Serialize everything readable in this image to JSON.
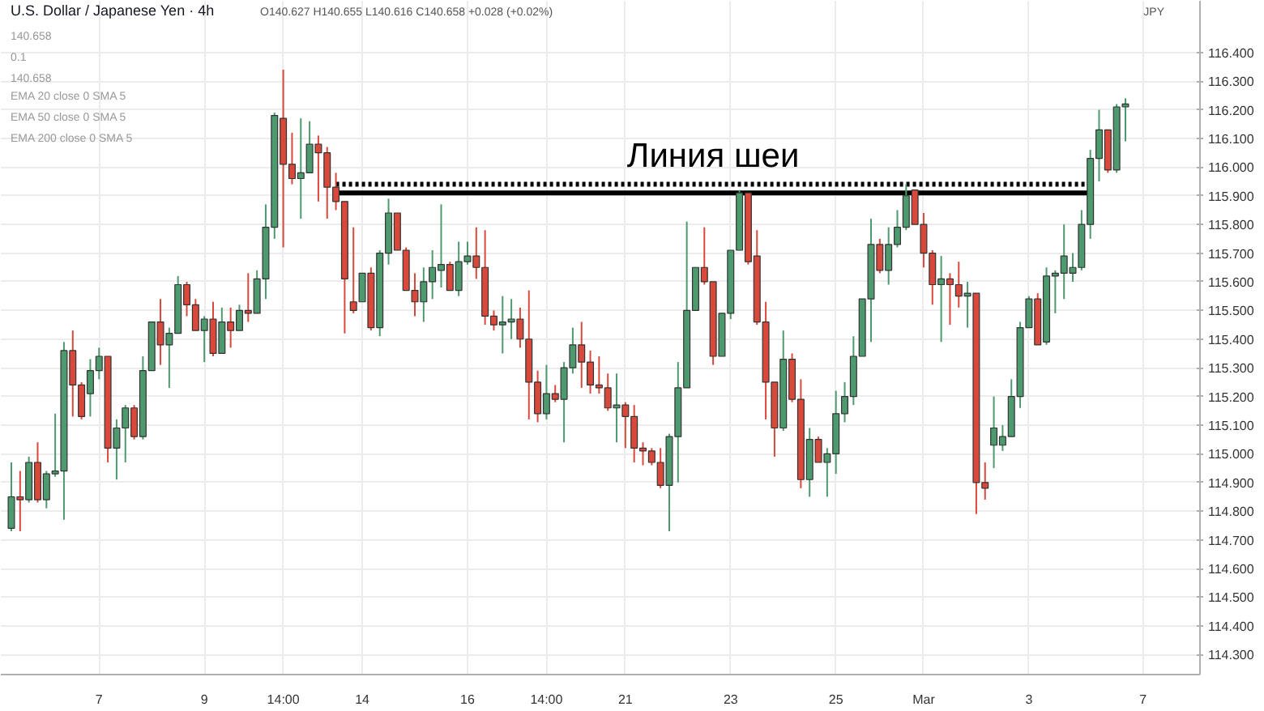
{
  "chart_data": {
    "type": "candlestick",
    "title": "U.S. Dollar / Japanese Yen · 4h",
    "ylabel": "JPY",
    "annotations": [
      "O140.627 H140.655 L140.616 C140.658 +0.028 (+0.02%)",
      "140.658",
      "0.1",
      "140.658",
      "EMA 20 close 0 SMA 5",
      "EMA 50 close 0 SMA 5",
      "EMA 200 close 0 SMA 5",
      "Линия шеи"
    ],
    "categories": [
      null,
      null,
      null,
      null,
      null,
      null,
      null,
      null,
      null,
      null,
      "7",
      null,
      null,
      null,
      null,
      null,
      null,
      null,
      null,
      null,
      null,
      null,
      "9",
      null,
      null,
      null,
      null,
      null,
      null,
      null,
      null,
      "14:00",
      null,
      null,
      null,
      null,
      null,
      null,
      null,
      null,
      "14",
      null,
      null,
      null,
      null,
      null,
      null,
      null,
      null,
      null,
      null,
      null,
      "16",
      null,
      null,
      null,
      null,
      null,
      null,
      null,
      null,
      "14:00",
      null,
      null,
      null,
      null,
      null,
      null,
      null,
      null,
      "21",
      null,
      null,
      null,
      null,
      null,
      null,
      null,
      null,
      null,
      null,
      null,
      "23",
      null,
      null,
      null,
      null,
      null,
      null,
      null,
      null,
      null,
      null,
      null,
      "25",
      null,
      null,
      null,
      null,
      null,
      null,
      null,
      null,
      null,
      "Mar",
      null,
      null,
      null,
      null,
      null,
      null,
      null,
      null,
      null,
      null,
      null,
      "3",
      null,
      null,
      null,
      null,
      null,
      null,
      null,
      null,
      null,
      null,
      null,
      null,
      "7"
    ],
    "ohlc": [
      [
        114.74,
        114.97,
        114.73,
        114.85
      ],
      [
        114.85,
        114.94,
        114.73,
        114.84
      ],
      [
        114.84,
        114.99,
        114.83,
        114.97
      ],
      [
        114.97,
        115.04,
        114.83,
        114.84
      ],
      [
        114.84,
        114.94,
        114.81,
        114.93
      ],
      [
        114.93,
        115.14,
        114.92,
        114.94
      ],
      [
        114.94,
        115.39,
        114.77,
        115.36
      ],
      [
        115.36,
        115.43,
        115.13,
        115.24
      ],
      [
        115.24,
        115.25,
        115.12,
        115.13
      ],
      [
        115.21,
        115.33,
        115.13,
        115.29
      ],
      [
        115.29,
        115.37,
        115.26,
        115.34
      ],
      [
        115.34,
        115.34,
        114.97,
        115.02
      ],
      [
        115.02,
        115.12,
        114.91,
        115.09
      ],
      [
        115.09,
        115.17,
        114.97,
        115.16
      ],
      [
        115.16,
        115.17,
        115.05,
        115.06
      ],
      [
        115.06,
        115.34,
        115.05,
        115.29
      ],
      [
        115.29,
        115.46,
        115.29,
        115.46
      ],
      [
        115.46,
        115.54,
        115.31,
        115.38
      ],
      [
        115.38,
        115.44,
        115.23,
        115.42
      ],
      [
        115.42,
        115.62,
        115.42,
        115.59
      ],
      [
        115.59,
        115.6,
        115.48,
        115.52
      ],
      [
        115.52,
        115.54,
        115.43,
        115.43
      ],
      [
        115.43,
        115.48,
        115.32,
        115.47
      ],
      [
        115.47,
        115.53,
        115.34,
        115.35
      ],
      [
        115.35,
        115.51,
        115.35,
        115.46
      ],
      [
        115.46,
        115.51,
        115.37,
        115.43
      ],
      [
        115.43,
        115.52,
        115.43,
        115.5
      ],
      [
        115.5,
        115.63,
        115.46,
        115.49
      ],
      [
        115.49,
        115.64,
        115.49,
        115.61
      ],
      [
        115.61,
        115.87,
        115.54,
        115.79
      ],
      [
        115.79,
        116.19,
        115.75,
        116.18
      ],
      [
        116.17,
        116.34,
        115.72,
        116.01
      ],
      [
        116.01,
        116.12,
        115.94,
        115.96
      ],
      [
        115.96,
        116.17,
        115.82,
        115.98
      ],
      [
        115.98,
        116.16,
        115.98,
        116.08
      ],
      [
        116.08,
        116.11,
        115.88,
        116.05
      ],
      [
        116.05,
        116.07,
        115.82,
        115.93
      ],
      [
        115.93,
        115.98,
        115.85,
        115.88
      ],
      [
        115.88,
        115.88,
        115.42,
        115.61
      ],
      [
        115.53,
        115.79,
        115.49,
        115.5
      ],
      [
        115.53,
        115.63,
        115.53,
        115.63
      ],
      [
        115.63,
        115.65,
        115.43,
        115.44
      ],
      [
        115.44,
        115.71,
        115.41,
        115.7
      ],
      [
        115.7,
        115.89,
        115.66,
        115.84
      ],
      [
        115.84,
        115.84,
        115.71,
        115.71
      ],
      [
        115.71,
        115.72,
        115.57,
        115.57
      ],
      [
        115.57,
        115.63,
        115.48,
        115.53
      ],
      [
        115.53,
        115.65,
        115.46,
        115.6
      ],
      [
        115.6,
        115.71,
        115.54,
        115.65
      ],
      [
        115.64,
        115.87,
        115.58,
        115.66
      ],
      [
        115.66,
        115.67,
        115.57,
        115.57
      ],
      [
        115.57,
        115.74,
        115.55,
        115.67
      ],
      [
        115.67,
        115.74,
        115.66,
        115.69
      ],
      [
        115.69,
        115.79,
        115.61,
        115.65
      ],
      [
        115.65,
        115.78,
        115.45,
        115.48
      ],
      [
        115.48,
        115.5,
        115.43,
        115.45
      ],
      [
        115.45,
        115.55,
        115.35,
        115.46
      ],
      [
        115.46,
        115.54,
        115.4,
        115.47
      ],
      [
        115.47,
        115.51,
        115.37,
        115.4
      ],
      [
        115.4,
        115.57,
        115.12,
        115.25
      ],
      [
        115.25,
        115.29,
        115.11,
        115.14
      ],
      [
        115.14,
        115.31,
        115.12,
        115.21
      ],
      [
        115.21,
        115.24,
        115.18,
        115.19
      ],
      [
        115.19,
        115.32,
        115.04,
        115.3
      ],
      [
        115.3,
        115.44,
        115.28,
        115.38
      ],
      [
        115.38,
        115.46,
        115.23,
        115.32
      ],
      [
        115.32,
        115.36,
        115.21,
        115.24
      ],
      [
        115.24,
        115.34,
        115.21,
        115.23
      ],
      [
        115.23,
        115.28,
        115.15,
        115.16
      ],
      [
        115.16,
        115.28,
        115.04,
        115.17
      ],
      [
        115.17,
        115.18,
        115.02,
        115.13
      ],
      [
        115.13,
        115.17,
        114.97,
        115.02
      ],
      [
        115.02,
        115.04,
        114.96,
        115.01
      ],
      [
        115.01,
        115.02,
        114.96,
        114.97
      ],
      [
        114.97,
        115.02,
        114.88,
        114.89
      ],
      [
        114.89,
        115.07,
        114.73,
        115.06
      ],
      [
        115.06,
        115.32,
        114.9,
        115.23
      ],
      [
        115.23,
        115.81,
        115.23,
        115.5
      ],
      [
        115.5,
        115.65,
        115.5,
        115.65
      ],
      [
        115.65,
        115.79,
        115.59,
        115.6
      ],
      [
        115.6,
        115.6,
        115.31,
        115.34
      ],
      [
        115.34,
        115.49,
        115.34,
        115.49
      ],
      [
        115.49,
        115.71,
        115.47,
        115.71
      ],
      [
        115.71,
        115.92,
        115.71,
        115.91
      ],
      [
        115.91,
        115.91,
        115.66,
        115.67
      ],
      [
        115.69,
        115.78,
        115.45,
        115.46
      ],
      [
        115.46,
        115.53,
        115.12,
        115.25
      ],
      [
        115.25,
        115.25,
        114.99,
        115.09
      ],
      [
        115.09,
        115.43,
        115.08,
        115.33
      ],
      [
        115.33,
        115.35,
        115.18,
        115.19
      ],
      [
        115.19,
        115.26,
        114.88,
        114.91
      ],
      [
        114.91,
        115.09,
        114.85,
        115.05
      ],
      [
        115.05,
        115.06,
        114.97,
        114.97
      ],
      [
        114.97,
        115.02,
        114.85,
        115.0
      ],
      [
        115.0,
        115.22,
        114.93,
        115.14
      ],
      [
        115.14,
        115.25,
        115.11,
        115.2
      ],
      [
        115.2,
        115.41,
        115.17,
        115.34
      ],
      [
        115.34,
        115.54,
        115.34,
        115.54
      ],
      [
        115.54,
        115.82,
        115.39,
        115.73
      ],
      [
        115.73,
        115.75,
        115.63,
        115.64
      ],
      [
        115.64,
        115.79,
        115.59,
        115.73
      ],
      [
        115.73,
        115.85,
        115.72,
        115.79
      ],
      [
        115.79,
        115.94,
        115.78,
        115.9
      ],
      [
        115.92,
        115.92,
        115.8,
        115.8
      ],
      [
        115.8,
        115.84,
        115.65,
        115.7
      ],
      [
        115.7,
        115.71,
        115.52,
        115.59
      ],
      [
        115.59,
        115.69,
        115.39,
        115.61
      ],
      [
        115.61,
        115.63,
        115.45,
        115.59
      ],
      [
        115.59,
        115.67,
        115.51,
        115.55
      ],
      [
        115.55,
        115.6,
        115.44,
        115.56
      ],
      [
        115.56,
        115.56,
        114.79,
        114.9
      ],
      [
        114.9,
        114.97,
        114.84,
        114.88
      ],
      [
        115.03,
        115.2,
        114.95,
        115.09
      ],
      [
        115.03,
        115.1,
        115.01,
        115.06
      ],
      [
        115.06,
        115.26,
        115.06,
        115.2
      ],
      [
        115.2,
        115.46,
        115.16,
        115.44
      ],
      [
        115.44,
        115.55,
        115.44,
        115.54
      ],
      [
        115.54,
        115.56,
        115.38,
        115.38
      ],
      [
        115.39,
        115.65,
        115.38,
        115.62
      ],
      [
        115.62,
        115.64,
        115.49,
        115.63
      ],
      [
        115.63,
        115.8,
        115.54,
        115.69
      ],
      [
        115.63,
        115.7,
        115.6,
        115.65
      ],
      [
        115.65,
        115.85,
        115.64,
        115.8
      ],
      [
        115.8,
        116.06,
        115.75,
        116.03
      ],
      [
        116.03,
        116.2,
        115.95,
        116.13
      ],
      [
        116.13,
        116.13,
        115.98,
        115.99
      ],
      [
        115.99,
        116.22,
        115.98,
        116.21
      ],
      [
        116.21,
        116.24,
        116.09,
        116.22
      ],
      null,
      null
    ],
    "colors": [
      "#4e9a6f",
      "#d9493b",
      "#4e9a6f",
      "#d9493b",
      "#4e9a6f",
      "#4e9a6f",
      "#4e9a6f",
      "#d9493b",
      "#d9493b",
      "#4e9a6f",
      "#4e9a6f",
      "#d9493b",
      "#4e9a6f",
      "#4e9a6f",
      "#d9493b",
      "#4e9a6f",
      "#4e9a6f",
      "#d9493b",
      "#4e9a6f",
      "#4e9a6f",
      "#d9493b",
      "#d9493b",
      "#4e9a6f",
      "#d9493b",
      "#4e9a6f",
      "#d9493b",
      "#4e9a6f",
      "#d9493b",
      "#4e9a6f",
      "#4e9a6f",
      "#4e9a6f",
      "#d9493b",
      "#d9493b",
      "#4e9a6f",
      "#4e9a6f",
      "#d9493b",
      "#d9493b",
      "#d9493b",
      "#d9493b",
      "#d9493b",
      "#4e9a6f",
      "#d9493b",
      "#4e9a6f",
      "#4e9a6f",
      "#d9493b",
      "#d9493b",
      "#d9493b",
      "#4e9a6f",
      "#4e9a6f",
      "#4e9a6f",
      "#d9493b",
      "#4e9a6f",
      "#4e9a6f",
      "#d9493b",
      "#d9493b",
      "#d9493b",
      "#4e9a6f",
      "#4e9a6f",
      "#d9493b",
      "#d9493b",
      "#d9493b",
      "#4e9a6f",
      "#d9493b",
      "#4e9a6f",
      "#4e9a6f",
      "#d9493b",
      "#d9493b",
      "#d9493b",
      "#d9493b",
      "#4e9a6f",
      "#d9493b",
      "#d9493b",
      "#d9493b",
      "#d9493b",
      "#d9493b",
      "#4e9a6f",
      "#4e9a6f",
      "#4e9a6f",
      "#4e9a6f",
      "#d9493b",
      "#d9493b",
      "#4e9a6f",
      "#4e9a6f",
      "#4e9a6f",
      "#d9493b",
      "#d9493b",
      "#d9493b",
      "#d9493b",
      "#4e9a6f",
      "#d9493b",
      "#d9493b",
      "#4e9a6f",
      "#d9493b",
      "#4e9a6f",
      "#4e9a6f",
      "#4e9a6f",
      "#4e9a6f",
      "#4e9a6f",
      "#4e9a6f",
      "#d9493b",
      "#4e9a6f",
      "#4e9a6f",
      "#4e9a6f",
      "#d9493b",
      "#d9493b",
      "#d9493b",
      "#4e9a6f",
      "#d9493b",
      "#d9493b",
      "#4e9a6f",
      "#d9493b",
      "#d9493b",
      "#4e9a6f",
      "#4e9a6f",
      "#4e9a6f",
      "#4e9a6f",
      "#4e9a6f",
      "#d9493b",
      "#4e9a6f",
      "#4e9a6f",
      "#4e9a6f",
      "#4e9a6f",
      "#4e9a6f",
      "#4e9a6f",
      "#4e9a6f",
      "#d9493b",
      "#4e9a6f",
      "#4e9a6f",
      null,
      null
    ],
    "series": [
      {
        "type": "line",
        "values": [
          null,
          null,
          null,
          null,
          null,
          null,
          null,
          null,
          null,
          null,
          null,
          null,
          null,
          null,
          null,
          null,
          null,
          null,
          null,
          null,
          null,
          null,
          null,
          null,
          null,
          null,
          null,
          null,
          null,
          null,
          null,
          null,
          null,
          null,
          null,
          null,
          null,
          115.94,
          115.94,
          115.94,
          115.94,
          115.94,
          115.94,
          115.94,
          115.94,
          115.94,
          115.94,
          115.94,
          115.94,
          115.94,
          115.94,
          115.94,
          115.94,
          115.94,
          115.94,
          115.94,
          115.94,
          115.94,
          115.94,
          115.94,
          115.94,
          115.94,
          115.94,
          115.94,
          115.94,
          115.94,
          115.94,
          115.94,
          115.94,
          115.94,
          115.94,
          115.94,
          115.94,
          115.94,
          115.94,
          115.94,
          115.94,
          115.94,
          115.94,
          115.94,
          115.94,
          115.94,
          115.94,
          115.94,
          115.94,
          115.94,
          115.94,
          115.94,
          115.94,
          115.94,
          115.94,
          115.94,
          115.94,
          115.94,
          115.94,
          115.94,
          115.94,
          115.94,
          115.94,
          115.94,
          115.94,
          115.94,
          115.94,
          115.94,
          115.94,
          115.94,
          115.94,
          115.94,
          115.94,
          115.94,
          115.94,
          115.94,
          115.94,
          115.94,
          115.94,
          115.94,
          115.94,
          115.94,
          115.94,
          115.94,
          115.94,
          115.94,
          115.94,
          115.94,
          null,
          null,
          null,
          null,
          null,
          null
        ],
        "color": "#000000",
        "line_style": "dotted"
      },
      {
        "type": "line",
        "values": [
          null,
          null,
          null,
          null,
          null,
          null,
          null,
          null,
          null,
          null,
          null,
          null,
          null,
          null,
          null,
          null,
          null,
          null,
          null,
          null,
          null,
          null,
          null,
          null,
          null,
          null,
          null,
          null,
          null,
          null,
          null,
          null,
          null,
          null,
          null,
          null,
          null,
          115.91,
          115.91,
          115.91,
          115.91,
          115.91,
          115.91,
          115.91,
          115.91,
          115.91,
          115.91,
          115.91,
          115.91,
          115.91,
          115.91,
          115.91,
          115.91,
          115.91,
          115.91,
          115.91,
          115.91,
          115.91,
          115.91,
          115.91,
          115.91,
          115.91,
          115.91,
          115.91,
          115.91,
          115.91,
          115.91,
          115.91,
          115.91,
          115.91,
          115.91,
          115.91,
          115.91,
          115.91,
          115.91,
          115.91,
          115.91,
          115.91,
          115.91,
          115.91,
          115.91,
          115.91,
          115.91,
          115.91,
          115.91,
          115.91,
          115.91,
          115.91,
          115.91,
          115.91,
          115.91,
          115.91,
          115.91,
          115.91,
          115.91,
          115.91,
          115.91,
          115.91,
          115.91,
          115.91,
          115.91,
          115.91,
          115.91,
          115.91,
          115.91,
          115.91,
          115.91,
          115.91,
          115.91,
          115.91,
          115.91,
          115.91,
          115.91,
          115.91,
          115.91,
          115.91,
          115.91,
          115.91,
          115.91,
          115.91,
          115.91,
          115.91,
          115.91,
          115.91,
          null,
          null,
          null,
          null,
          null,
          null
        ],
        "color": "#000000",
        "line_style": "solid"
      }
    ],
    "ylim": [
      114.23,
      116.58
    ],
    "yticks": [
      {
        "value": 114.3,
        "label": "114.300"
      },
      {
        "value": 114.4,
        "label": "114.400"
      },
      {
        "value": 114.5,
        "label": "114.500"
      },
      {
        "value": 114.6,
        "label": "114.600"
      },
      {
        "value": 114.7,
        "label": "114.700"
      },
      {
        "value": 114.8,
        "label": "114.800"
      },
      {
        "value": 114.9,
        "label": "114.900"
      },
      {
        "value": 115.0,
        "label": "115.000"
      },
      {
        "value": 115.1,
        "label": "115.100"
      },
      {
        "value": 115.2,
        "label": "115.200"
      },
      {
        "value": 115.3,
        "label": "115.300"
      },
      {
        "value": 115.4,
        "label": "115.400"
      },
      {
        "value": 115.5,
        "label": "115.500"
      },
      {
        "value": 115.6,
        "label": "115.600"
      },
      {
        "value": 115.7,
        "label": "115.700"
      },
      {
        "value": 115.8,
        "label": "115.800"
      },
      {
        "value": 115.9,
        "label": "115.900"
      },
      {
        "value": 116.0,
        "label": "116.000"
      },
      {
        "value": 116.1,
        "label": "116.100"
      },
      {
        "value": 116.2,
        "label": "116.200"
      },
      {
        "value": 116.3,
        "label": "116.300"
      },
      {
        "value": 116.4,
        "label": "116.400"
      }
    ],
    "grid": true
  }
}
